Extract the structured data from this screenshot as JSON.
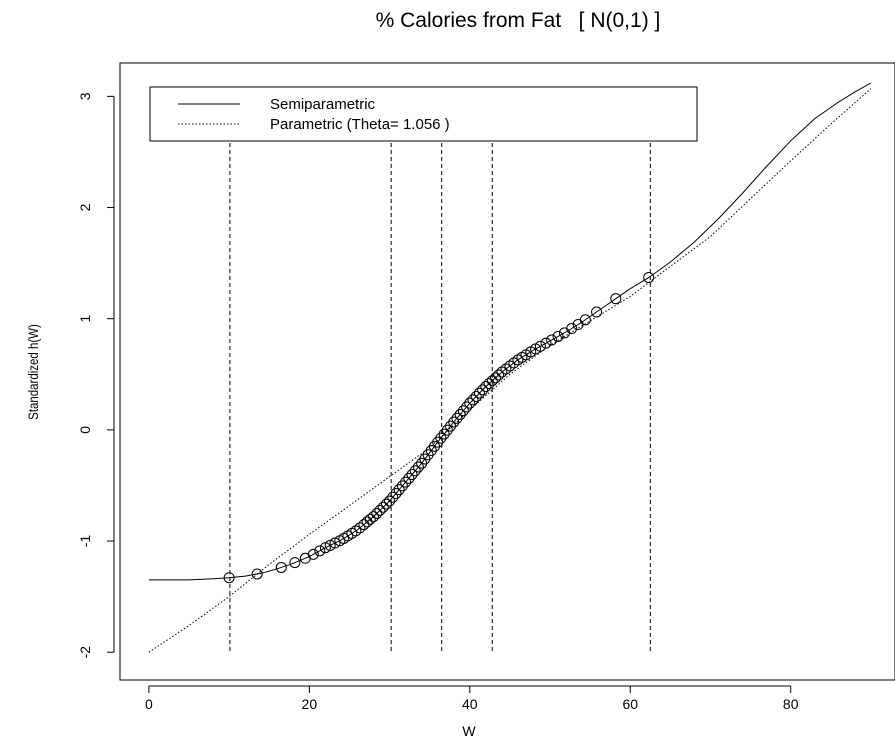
{
  "chart_data": {
    "type": "line",
    "title": "% Calories from Fat   [ N(0,1) ]",
    "xlabel": "W",
    "ylabel": "Standardized h(W)",
    "xlim": [
      -3.6,
      93
    ],
    "ylim": [
      -2.25,
      3.3
    ],
    "x_ticks": [
      0,
      20,
      40,
      60,
      80
    ],
    "x_tick_labels": [
      "0",
      "20",
      "40",
      "60",
      "80"
    ],
    "y_ticks": [
      -2,
      -1,
      0,
      1,
      2,
      3
    ],
    "y_tick_labels": [
      "-2",
      "-1",
      "0",
      "1",
      "2",
      "3"
    ],
    "legend": {
      "position": "top-left",
      "entries": [
        {
          "label": "Semiparametric",
          "style": "solid"
        },
        {
          "label": "Parametric (Theta= 1.056 )",
          "style": "dotted"
        }
      ]
    },
    "series": [
      {
        "name": "Semiparametric",
        "style": "solid",
        "points": [
          [
            0,
            -1.35
          ],
          [
            5,
            -1.35
          ],
          [
            8,
            -1.34
          ],
          [
            10,
            -1.33
          ],
          [
            12,
            -1.315
          ],
          [
            14,
            -1.29
          ],
          [
            16,
            -1.25
          ],
          [
            18,
            -1.2
          ],
          [
            20,
            -1.14
          ],
          [
            22,
            -1.06
          ],
          [
            24,
            -0.99
          ],
          [
            26,
            -0.9
          ],
          [
            28,
            -0.78
          ],
          [
            30,
            -0.64
          ],
          [
            32,
            -0.47
          ],
          [
            34,
            -0.3
          ],
          [
            36,
            -0.11
          ],
          [
            38,
            0.07
          ],
          [
            40,
            0.24
          ],
          [
            42,
            0.39
          ],
          [
            44,
            0.52
          ],
          [
            46,
            0.63
          ],
          [
            48,
            0.72
          ],
          [
            50,
            0.8
          ],
          [
            52,
            0.88
          ],
          [
            54,
            0.97
          ],
          [
            56,
            1.07
          ],
          [
            58,
            1.17
          ],
          [
            60,
            1.27
          ],
          [
            62.3,
            1.37
          ],
          [
            65,
            1.51
          ],
          [
            68,
            1.69
          ],
          [
            71,
            1.9
          ],
          [
            74,
            2.13
          ],
          [
            77,
            2.37
          ],
          [
            80,
            2.6
          ],
          [
            83,
            2.8
          ],
          [
            86,
            2.95
          ],
          [
            88,
            3.04
          ],
          [
            90,
            3.12
          ]
        ]
      },
      {
        "name": "Parametric (Theta= 1.056 )",
        "style": "dotted",
        "points": [
          [
            0,
            -2.0
          ],
          [
            5,
            -1.76
          ],
          [
            10,
            -1.5
          ],
          [
            15,
            -1.21
          ],
          [
            20,
            -0.94
          ],
          [
            25,
            -0.68
          ],
          [
            30,
            -0.42
          ],
          [
            35,
            -0.16
          ],
          [
            40,
            0.18
          ],
          [
            45,
            0.5
          ],
          [
            50,
            0.76
          ],
          [
            55,
            0.98
          ],
          [
            60,
            1.2
          ],
          [
            65,
            1.47
          ],
          [
            70,
            1.74
          ],
          [
            75,
            2.08
          ],
          [
            80,
            2.42
          ],
          [
            85,
            2.75
          ],
          [
            90,
            3.07
          ]
        ]
      }
    ],
    "circle_points_x": [
      10,
      13.5,
      16.5,
      18.2,
      19.5,
      20.5,
      21.3,
      22,
      22.6,
      23.2,
      23.8,
      24.3,
      24.8,
      25.3,
      25.8,
      26.3,
      26.8,
      27.2,
      27.6,
      28,
      28.4,
      28.8,
      29.2,
      29.6,
      30,
      30.4,
      30.8,
      31.2,
      31.6,
      32,
      32.4,
      32.8,
      33.2,
      33.6,
      34,
      34.4,
      34.8,
      35.2,
      35.6,
      36,
      36.4,
      36.8,
      37.2,
      37.6,
      38,
      38.4,
      38.8,
      39.2,
      39.6,
      40,
      40.4,
      40.8,
      41.2,
      41.6,
      42,
      42.4,
      42.8,
      43.2,
      43.6,
      44,
      44.5,
      45,
      45.5,
      46,
      46.5,
      47,
      47.6,
      48.2,
      48.8,
      49.5,
      50.2,
      51,
      51.8,
      52.7,
      53.5,
      54.4,
      55.8,
      58.2,
      62.3
    ],
    "vertical_lines_x": [
      10.1,
      30.2,
      36.5,
      42.8,
      62.5
    ],
    "grid": false,
    "box": true
  }
}
